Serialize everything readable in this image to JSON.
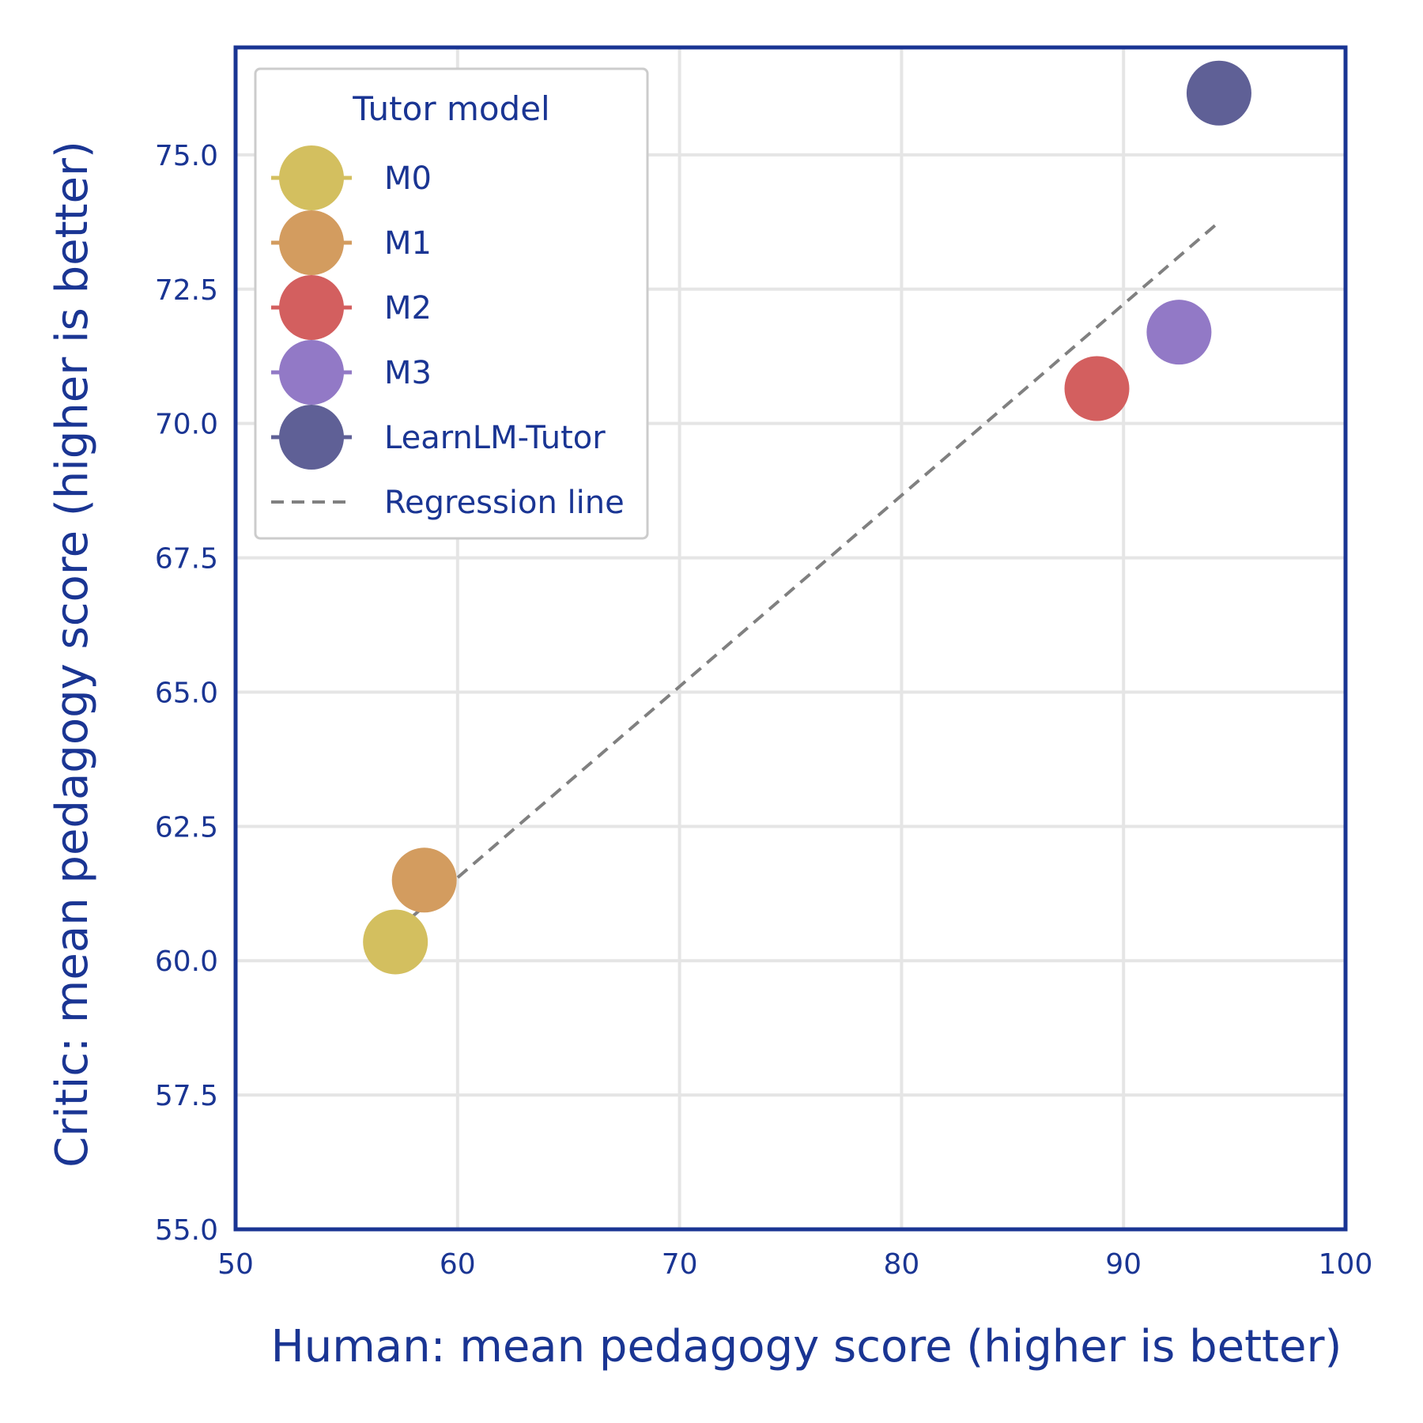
{
  "chart_data": {
    "type": "scatter",
    "title": "",
    "xlabel": "Human: mean pedagogy score (higher is better)",
    "ylabel": "Critic: mean pedagogy score (higher is better)",
    "xlim": [
      50,
      100
    ],
    "ylim": [
      55.0,
      77.0
    ],
    "xticks": [
      "50",
      "60",
      "70",
      "80",
      "90",
      "100"
    ],
    "xtick_values": [
      50,
      60,
      70,
      80,
      90,
      100
    ],
    "yticks": [
      "55.0",
      "57.5",
      "60.0",
      "62.5",
      "65.0",
      "67.5",
      "70.0",
      "72.5",
      "75.0"
    ],
    "ytick_values": [
      55.0,
      57.5,
      60.0,
      62.5,
      65.0,
      67.5,
      70.0,
      72.5,
      75.0
    ],
    "grid": true,
    "legend": {
      "title": "Tutor model",
      "placement": "top-left"
    },
    "series": [
      {
        "name": "M0",
        "x": 57.2,
        "y": 60.35,
        "color": "#d3bf5f"
      },
      {
        "name": "M1",
        "x": 58.5,
        "y": 61.5,
        "color": "#d39c5f"
      },
      {
        "name": "M2",
        "x": 88.8,
        "y": 70.65,
        "color": "#d35f5f"
      },
      {
        "name": "M3",
        "x": 92.5,
        "y": 71.7,
        "color": "#9279c6"
      },
      {
        "name": "LearnLM-Tutor",
        "x": 94.3,
        "y": 76.15,
        "color": "#5f6096"
      }
    ],
    "regression": {
      "name": "Regression line",
      "x": [
        57.2,
        94.3
      ],
      "y": [
        60.55,
        73.75
      ],
      "color": "#808080",
      "style": "dashed"
    }
  }
}
